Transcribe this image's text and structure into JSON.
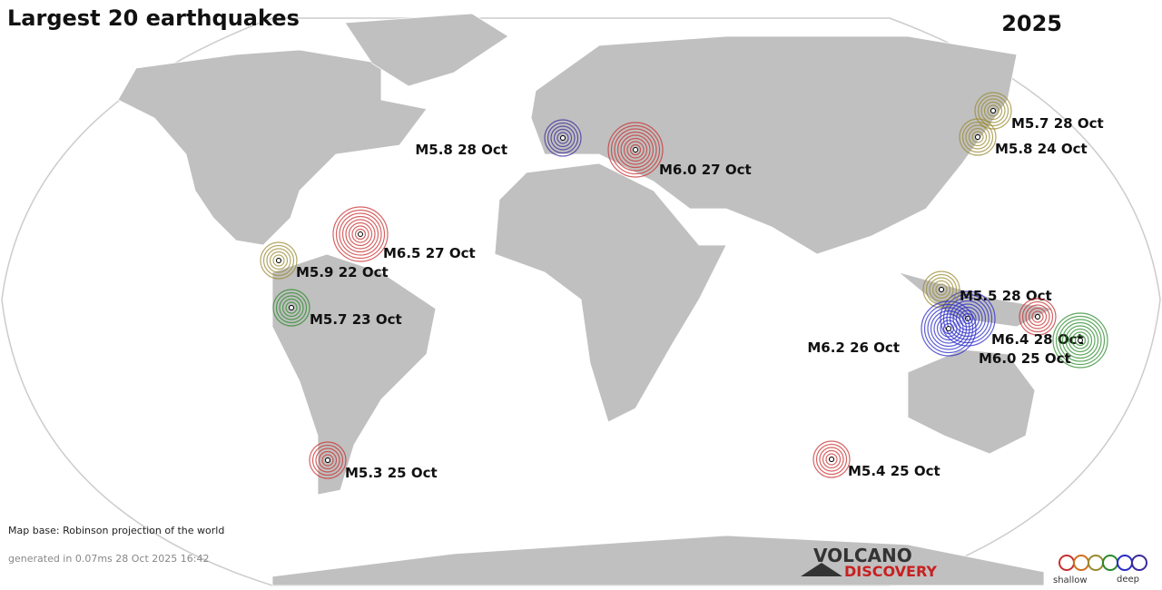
{
  "title": "Largest 20 earthquakes",
  "year": "2025",
  "quakes": [
    {
      "label": "M5.8 28 Oct",
      "color": "#3a2a9a"
    },
    {
      "label": "M6.0 27 Oct",
      "color": "#c83030"
    },
    {
      "label": "M5.7 28 Oct",
      "color": "#9a8a30"
    },
    {
      "label": "M5.8 24 Oct",
      "color": "#9a8a30"
    },
    {
      "label": "M6.5 27 Oct",
      "color": "#c83030"
    },
    {
      "label": "M5.9 22 Oct",
      "color": "#9a8a30"
    },
    {
      "label": "M5.7 23 Oct",
      "color": "#2a8a2a"
    },
    {
      "label": "M5.5 28 Oct",
      "color": "#9a8a30"
    },
    {
      "label": "M6.2 26 Oct",
      "color": "#2a2ac8"
    },
    {
      "label": "M6.4 28 Oct",
      "color": "#c83030"
    },
    {
      "label": "M6.0 25 Oct",
      "color": "#2a8a2a"
    },
    {
      "label": "M5.3 25 Oct",
      "color": "#c83030"
    },
    {
      "label": "M5.4 25 Oct",
      "color": "#c83030"
    }
  ],
  "footer": {
    "map_base": "Map base: Robinson projection of the world",
    "generated": "generated in 0.07ms 28 Oct 2025 16:42"
  },
  "brand": {
    "line1": "VOLCANO",
    "line2": "DISCOVERY"
  },
  "legend": {
    "shallow": "shallow",
    "deep": "deep"
  }
}
